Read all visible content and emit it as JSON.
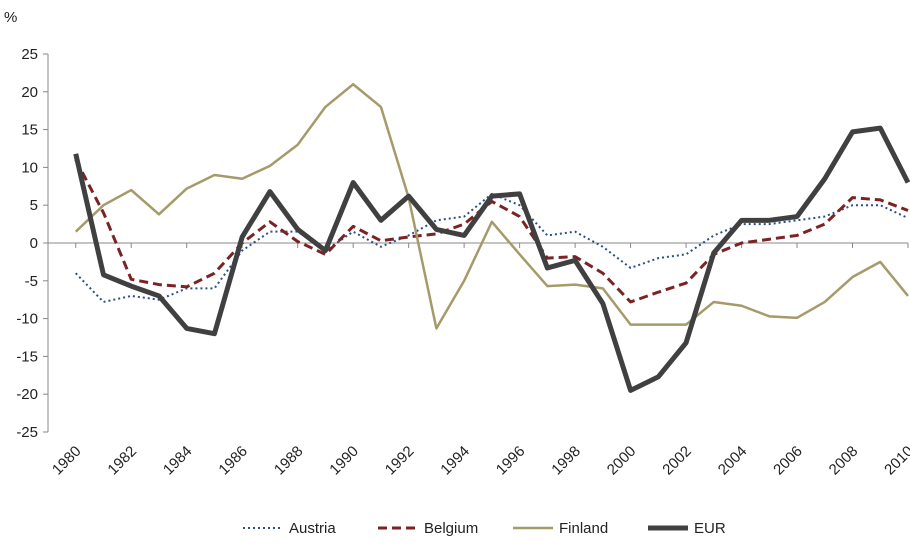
{
  "chart_data": {
    "type": "line",
    "y_label": "%",
    "x": [
      1980,
      1981,
      1982,
      1983,
      1984,
      1985,
      1986,
      1987,
      1988,
      1989,
      1990,
      1991,
      1992,
      1993,
      1994,
      1995,
      1996,
      1997,
      1998,
      1999,
      2000,
      2001,
      2002,
      2003,
      2004,
      2005,
      2006,
      2007,
      2008,
      2009,
      2010
    ],
    "xlim": [
      1979,
      2010
    ],
    "xticks": [
      1980,
      1982,
      1984,
      1986,
      1988,
      1990,
      1992,
      1994,
      1996,
      1998,
      2000,
      2002,
      2004,
      2006,
      2008,
      2010
    ],
    "ylim": [
      -25,
      25
    ],
    "yticks": [
      -25,
      -20,
      -15,
      -10,
      -5,
      0,
      5,
      10,
      15,
      20,
      25
    ],
    "legend": "bottom",
    "series": [
      {
        "name": "Austria",
        "color": "#2a4d8f",
        "style": "dotted",
        "values": [
          -4,
          -7.8,
          -7,
          -7.5,
          -6,
          -6,
          -1,
          1.5,
          1.5,
          -1,
          1.5,
          -0.5,
          1,
          3,
          3.5,
          6.5,
          5,
          1,
          1.5,
          -0.5,
          -3.3,
          -2,
          -1.5,
          1,
          2.5,
          2.5,
          3,
          3.5,
          5,
          5,
          3.3
        ]
      },
      {
        "name": "Belgium",
        "color": "#7b2323",
        "style": "dashed",
        "values": [
          11,
          4,
          -4.8,
          -5.5,
          -5.8,
          -4,
          0,
          2.8,
          0.2,
          -1.5,
          2.2,
          0.3,
          0.8,
          1.2,
          2.5,
          5.5,
          3.5,
          -2,
          -1.8,
          -4,
          -7.8,
          -6.5,
          -5.3,
          -1.5,
          0,
          0.5,
          1,
          2.5,
          6,
          5.7,
          4.3
        ]
      },
      {
        "name": "Finland",
        "color": "#a59b6a",
        "style": "solid",
        "values": [
          1.5,
          5,
          7,
          3.8,
          7.2,
          9,
          8.5,
          10.2,
          13,
          18,
          21,
          18,
          6,
          -11.3,
          -5,
          2.8,
          -1.5,
          -5.7,
          -5.5,
          -6,
          -10.8,
          -10.8,
          -10.8,
          -7.8,
          -8.3,
          -9.7,
          -9.9,
          -7.8,
          -4.5,
          -2.5,
          -7
        ]
      },
      {
        "name": "EUR",
        "color": "#404040",
        "style": "thick",
        "values": [
          11.8,
          -4.2,
          -5.7,
          -7,
          -11.3,
          -12,
          0.8,
          6.8,
          1.8,
          -1,
          8,
          3,
          6.2,
          1.8,
          1,
          6.2,
          6.5,
          -3.3,
          -2.3,
          -8,
          -19.5,
          -17.7,
          -13.2,
          -1.3,
          3,
          3,
          3.5,
          8.5,
          14.7,
          15.2,
          8
        ]
      }
    ]
  }
}
